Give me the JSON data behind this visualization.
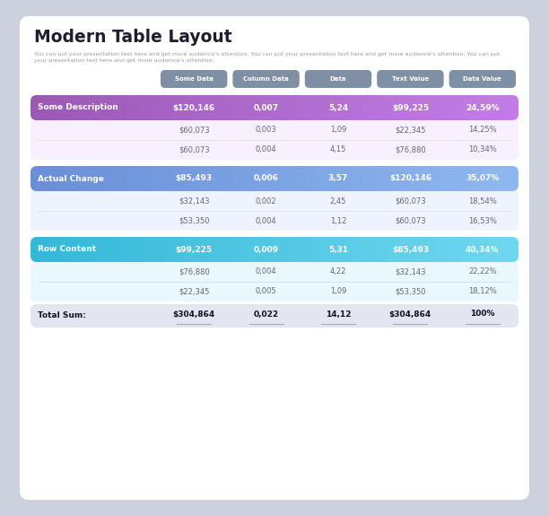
{
  "title": "Modern Table Layout",
  "subtitle": "You can put your presentation text here and get more audience's attention. You can put your presentation text here and get more audience's attention. You can put\nyour presentation text here and get more audience's attention.",
  "bg_color": "#cdd1de",
  "card_color": "#ffffff",
  "header_buttons": [
    "Some Data",
    "Column Data",
    "Data",
    "Text Value",
    "Data Value"
  ],
  "header_btn_color": "#7f8fa4",
  "header_btn_text_color": "#ffffff",
  "sections": [
    {
      "label": "Some Description",
      "col1": "$120,146",
      "col2": "0,007",
      "col3": "5,24",
      "col4": "$99,225",
      "col5": "24,59%",
      "header_color_start": "#9b59b6",
      "header_color_end": "#c47de8",
      "sub_bg_color": "#f8f0ff",
      "subrows": [
        [
          "$60,073",
          "0,003",
          "1,09",
          "$22,345",
          "14,25%"
        ],
        [
          "$60,073",
          "0,004",
          "4,15",
          "$76,880",
          "10,34%"
        ]
      ]
    },
    {
      "label": "Actual Change",
      "col1": "$85,493",
      "col2": "0,006",
      "col3": "3,57",
      "col4": "$120,146",
      "col5": "35,07%",
      "header_color_start": "#6a8fd8",
      "header_color_end": "#90b8f0",
      "sub_bg_color": "#eef3ff",
      "subrows": [
        [
          "$32,143",
          "0,002",
          "2,45",
          "$60,073",
          "18,54%"
        ],
        [
          "$53,350",
          "0,004",
          "1,12",
          "$60,073",
          "16,53%"
        ]
      ]
    },
    {
      "label": "Row Content",
      "col1": "$99,225",
      "col2": "0,009",
      "col3": "5,31",
      "col4": "$85,493",
      "col5": "40,34%",
      "header_color_start": "#35b8d8",
      "header_color_end": "#70d8f0",
      "sub_bg_color": "#e8f8fc",
      "subrows": [
        [
          "$76,880",
          "0,004",
          "4,22",
          "$32,143",
          "22,22%"
        ],
        [
          "$22,345",
          "0,005",
          "1,09",
          "$53,350",
          "18,12%"
        ]
      ]
    }
  ],
  "total_row": {
    "label": "Total Sum:",
    "col1": "$304,864",
    "col2": "0,022",
    "col3": "14,12",
    "col4": "$304,864",
    "col5": "100%",
    "bg_color": "#e4e6ef"
  }
}
